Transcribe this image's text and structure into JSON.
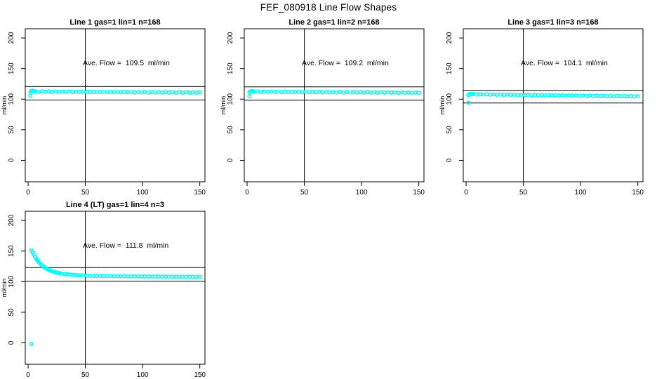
{
  "page_title": "FEF_080918  Line Flow Shapes",
  "colors": {
    "marker": "#00FFFF",
    "axis": "#000000",
    "background": "#FFFFFF"
  },
  "chart_data": [
    {
      "type": "scatter",
      "title": "Line 1 gas=1 lin=1 n=168",
      "annotation": "Ave. Flow =  109.5  ml/min",
      "ave_flow_ml_min": 109.5,
      "ylabel": "ml/min",
      "xlim": [
        -2.5,
        154.5
      ],
      "ylim": [
        -35,
        215
      ],
      "xticks": [
        0,
        50,
        100,
        150
      ],
      "yticks": [
        0,
        50,
        100,
        150,
        200
      ],
      "vline_x": 50,
      "hlines": [
        120.5,
        98.6
      ],
      "x": [
        2,
        2,
        3,
        4,
        5,
        6,
        9,
        12,
        15,
        18,
        21,
        24,
        27,
        30,
        33,
        36,
        39,
        42,
        45,
        48,
        51,
        54,
        57,
        60,
        63,
        66,
        69,
        72,
        75,
        78,
        81,
        84,
        87,
        90,
        93,
        96,
        99,
        102,
        105,
        108,
        111,
        114,
        117,
        120,
        123,
        126,
        129,
        132,
        135,
        138,
        141,
        144,
        147,
        150
      ],
      "y": [
        105.5,
        112.0,
        113.5,
        113.8,
        113.2,
        112.7,
        112.0,
        112.6,
        112.0,
        112.6,
        111.9,
        112.5,
        111.9,
        112.4,
        111.8,
        112.3,
        111.7,
        112.3,
        111.7,
        112.2,
        111.6,
        112.1,
        111.5,
        112.1,
        111.5,
        112.0,
        111.4,
        111.9,
        111.3,
        111.9,
        111.3,
        111.8,
        111.2,
        111.7,
        111.1,
        111.7,
        111.1,
        111.6,
        111.0,
        111.5,
        110.9,
        111.5,
        110.9,
        111.4,
        110.8,
        111.3,
        110.7,
        111.3,
        110.7,
        111.2,
        110.6,
        111.1,
        110.5,
        111.1
      ]
    },
    {
      "type": "scatter",
      "title": "Line 2 gas=1 lin=2 n=168",
      "annotation": "Ave. Flow =  109.2  ml/min",
      "ave_flow_ml_min": 109.2,
      "ylabel": "ml/min",
      "xlim": [
        -2.5,
        154.5
      ],
      "ylim": [
        -35,
        215
      ],
      "xticks": [
        0,
        50,
        100,
        150
      ],
      "yticks": [
        0,
        50,
        100,
        150,
        200
      ],
      "vline_x": 50,
      "hlines": [
        120.1,
        98.3
      ],
      "x": [
        2,
        2,
        3,
        4,
        5,
        6,
        9,
        12,
        15,
        18,
        21,
        24,
        27,
        30,
        33,
        36,
        39,
        42,
        45,
        48,
        51,
        54,
        57,
        60,
        63,
        66,
        69,
        72,
        75,
        78,
        81,
        84,
        87,
        90,
        93,
        96,
        99,
        102,
        105,
        108,
        111,
        114,
        117,
        120,
        123,
        126,
        129,
        132,
        135,
        138,
        141,
        144,
        147,
        150
      ],
      "y": [
        105.0,
        111.5,
        113.0,
        113.4,
        112.9,
        112.4,
        112.5,
        111.8,
        112.4,
        111.8,
        112.3,
        111.7,
        112.3,
        111.6,
        112.2,
        111.6,
        112.1,
        111.5,
        112.1,
        111.4,
        112.0,
        111.4,
        111.9,
        111.3,
        111.9,
        111.2,
        111.8,
        111.2,
        111.7,
        111.1,
        111.7,
        111.0,
        111.6,
        111.0,
        111.5,
        110.9,
        111.5,
        110.8,
        111.4,
        110.8,
        111.3,
        110.7,
        111.3,
        110.6,
        111.2,
        110.6,
        111.1,
        110.5,
        111.1,
        110.4,
        111.0,
        110.4,
        110.9,
        110.3
      ]
    },
    {
      "type": "scatter",
      "title": "Line 3 gas=1 lin=3 n=168",
      "annotation": "Ave. Flow =  104.1  ml/min",
      "ave_flow_ml_min": 104.1,
      "ylabel": "ml/min",
      "xlim": [
        -2.5,
        154.5
      ],
      "ylim": [
        -35,
        215
      ],
      "xticks": [
        0,
        50,
        100,
        150
      ],
      "yticks": [
        0,
        50,
        100,
        150,
        200
      ],
      "vline_x": 50,
      "hlines": [
        114.5,
        93.7
      ],
      "x": [
        2,
        2,
        3,
        4,
        5,
        6,
        9,
        12,
        15,
        18,
        21,
        24,
        27,
        30,
        33,
        36,
        39,
        42,
        45,
        48,
        51,
        54,
        57,
        60,
        63,
        66,
        69,
        72,
        75,
        78,
        81,
        84,
        87,
        90,
        93,
        96,
        99,
        102,
        105,
        108,
        111,
        114,
        117,
        120,
        123,
        126,
        129,
        132,
        135,
        138,
        141,
        144,
        147,
        150
      ],
      "y": [
        94.0,
        106.5,
        108.2,
        108.5,
        108.3,
        108.3,
        107.6,
        108.1,
        107.5,
        108.0,
        107.3,
        107.8,
        107.2,
        107.7,
        107.0,
        107.5,
        106.9,
        107.4,
        106.7,
        107.2,
        106.6,
        107.1,
        106.4,
        106.9,
        106.3,
        106.8,
        106.1,
        106.6,
        106.0,
        106.5,
        105.9,
        106.3,
        105.7,
        106.2,
        105.6,
        106.1,
        105.4,
        105.9,
        105.3,
        105.8,
        105.2,
        105.6,
        105.0,
        105.5,
        104.9,
        105.4,
        104.7,
        105.2,
        104.6,
        105.1,
        104.5,
        104.9,
        104.3,
        104.8
      ]
    },
    {
      "type": "scatter",
      "title": "Line 4 (LT) gas=1 lin=4 n=3",
      "annotation": "Ave. Flow =  111.8  ml/min",
      "ave_flow_ml_min": 111.8,
      "ylabel": "ml/min",
      "xlim": [
        -2.5,
        154.5
      ],
      "ylim": [
        -35,
        215
      ],
      "xticks": [
        0,
        50,
        100,
        150
      ],
      "yticks": [
        0,
        50,
        100,
        150,
        200
      ],
      "vline_x": 50,
      "hlines": [
        123.0,
        100.6
      ],
      "x": [
        3,
        3,
        4,
        5,
        6,
        7,
        8,
        9,
        10,
        11,
        12,
        13,
        14,
        15,
        16,
        17,
        18,
        19,
        20,
        21,
        22,
        23,
        24,
        25,
        26,
        27,
        28,
        30,
        32,
        34,
        36,
        38,
        40,
        42,
        44,
        46,
        48,
        51,
        54,
        57,
        60,
        63,
        66,
        69,
        72,
        75,
        78,
        81,
        84,
        87,
        90,
        93,
        96,
        99,
        102,
        105,
        108,
        111,
        114,
        117,
        120,
        123,
        126,
        129,
        132,
        135,
        138,
        141,
        144,
        147,
        150
      ],
      "y": [
        -2,
        151,
        147.5,
        144,
        140.6,
        137.6,
        134.9,
        132.5,
        130.3,
        128.4,
        126.6,
        125.0,
        123.6,
        122.3,
        121.2,
        120.1,
        119.2,
        118.4,
        117.6,
        116.9,
        116.3,
        115.7,
        115.2,
        114.7,
        114.3,
        113.9,
        113.5,
        112.9,
        112.4,
        111.9,
        111.5,
        111.2,
        110.9,
        110.6,
        110.4,
        110.2,
        110.0,
        109.8,
        109.6,
        109.5,
        109.4,
        109.3,
        109.2,
        109.1,
        109.0,
        108.9,
        108.9,
        108.8,
        108.8,
        108.7,
        108.7,
        108.6,
        108.6,
        108.5,
        108.5,
        108.4,
        108.4,
        108.3,
        108.3,
        108.2,
        108.2,
        108.2,
        108.1,
        108.1,
        108.1,
        108.0,
        108.0,
        108.0,
        107.9,
        107.9,
        107.9
      ]
    }
  ]
}
